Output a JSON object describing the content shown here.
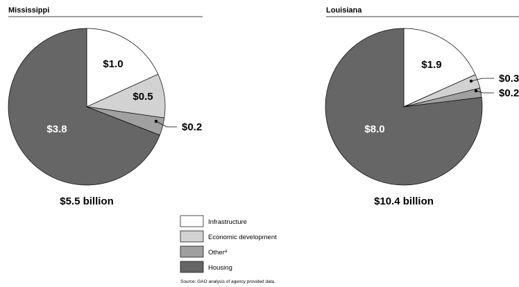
{
  "legend": {
    "items": [
      {
        "label": "Infrastructure",
        "sup": "",
        "color": "#ffffff"
      },
      {
        "label": "Economic development",
        "sup": "",
        "color": "#d2d2d2"
      },
      {
        "label": "Other",
        "sup": "a",
        "color": "#a0a0a0"
      },
      {
        "label": "Housing",
        "sup": "",
        "color": "#666666"
      }
    ]
  },
  "source": "Source: GAO analysis of agency provided data.",
  "chart_data": [
    {
      "type": "pie",
      "title": "Mississippi",
      "total_label": "$5.5 billion",
      "categories": [
        "Infrastructure",
        "Economic development",
        "Other",
        "Housing"
      ],
      "values": [
        1.0,
        0.5,
        0.2,
        3.8
      ],
      "labels": [
        "$1.0",
        "$0.5",
        "$0.2",
        "$3.8"
      ],
      "colors": [
        "#ffffff",
        "#d2d2d2",
        "#a0a0a0",
        "#666666"
      ]
    },
    {
      "type": "pie",
      "title": "Louisiana",
      "total_label": "$10.4 billion",
      "categories": [
        "Infrastructure",
        "Economic development",
        "Other",
        "Housing"
      ],
      "values": [
        1.9,
        0.3,
        0.2,
        8.0
      ],
      "labels": [
        "$1.9",
        "$0.3",
        "$0.2",
        "$8.0"
      ],
      "colors": [
        "#ffffff",
        "#d2d2d2",
        "#a0a0a0",
        "#666666"
      ]
    }
  ]
}
